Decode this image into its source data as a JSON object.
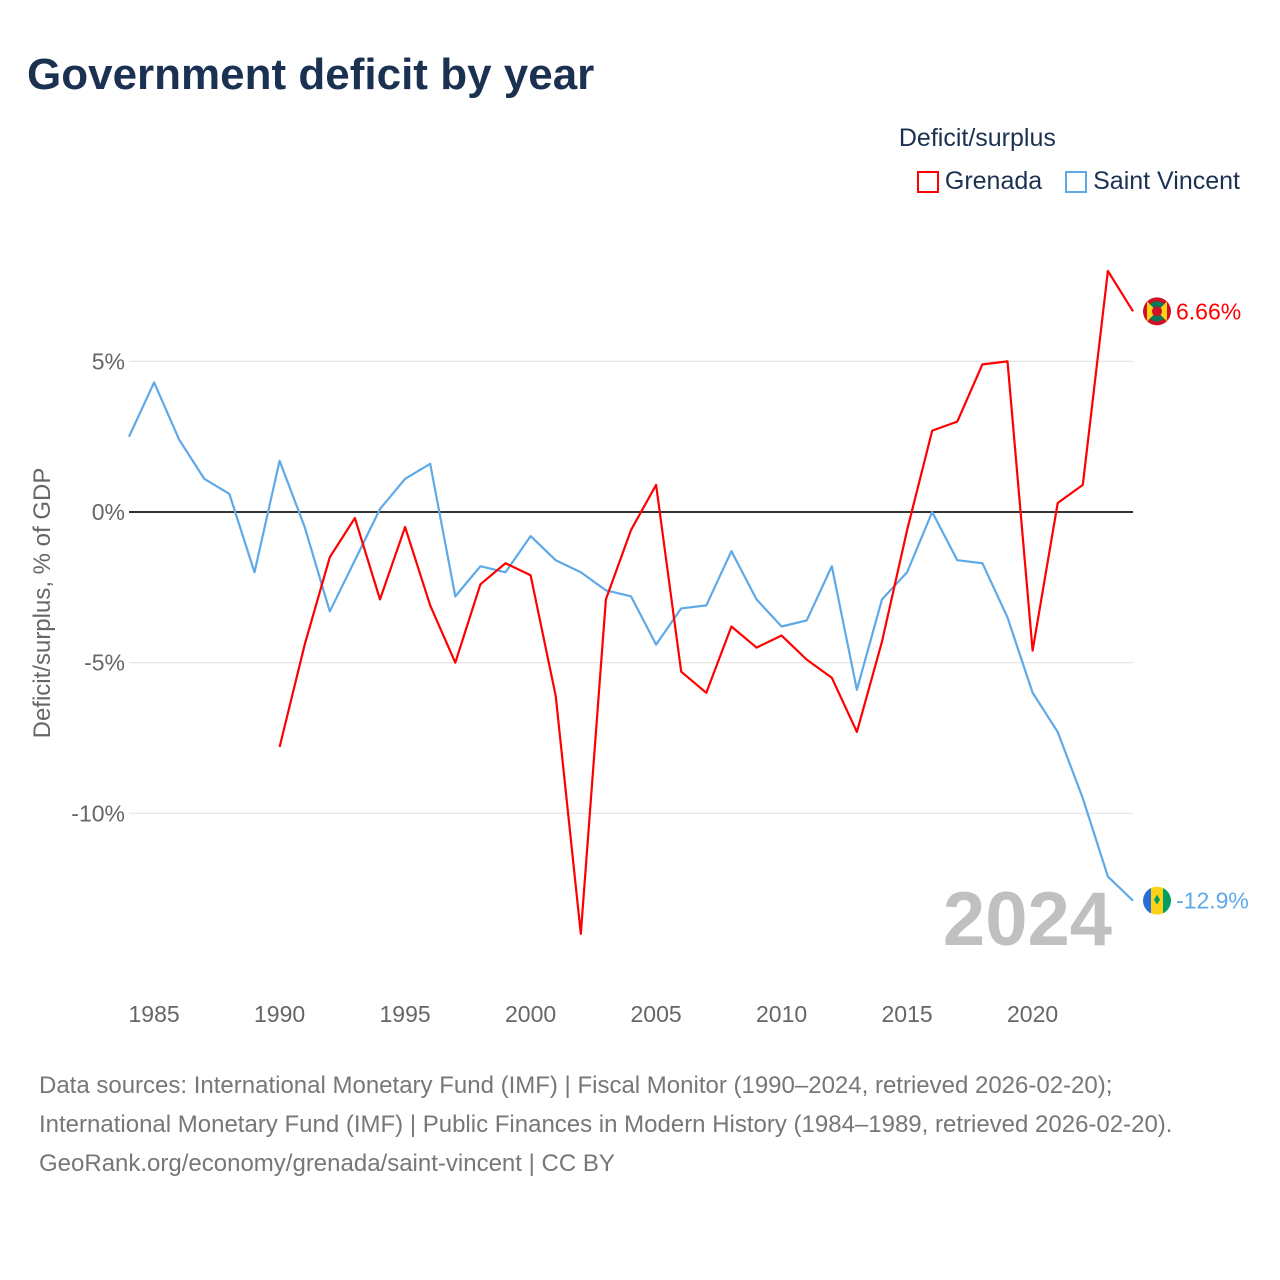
{
  "title": "Government deficit by year",
  "legend": {
    "title": "Deficit/surplus"
  },
  "year_label": "2024",
  "sources": {
    "line1": "Data sources: International Monetary Fund (IMF) | Fiscal Monitor (1990–2024, retrieved 2026-02-20); International Monetary Fund (IMF) | Public Finances in Modern History (1984–1989, retrieved 2026-02-20).",
    "line2": "GeoRank.org/economy/grenada/saint-vincent | CC BY"
  },
  "chart_data": {
    "type": "line",
    "title": "Government deficit by year",
    "xlabel": "",
    "ylabel": "Deficit/surplus, % of GDP",
    "xlim": [
      1984,
      2024
    ],
    "ylim": [
      -15,
      9
    ],
    "x_ticks": [
      1985,
      1990,
      1995,
      2000,
      2005,
      2010,
      2015,
      2020
    ],
    "y_ticks": [
      {
        "v": 5,
        "label": "5%"
      },
      {
        "v": 0,
        "label": "0%"
      },
      {
        "v": -5,
        "label": "-5%"
      },
      {
        "v": -10,
        "label": "-10%"
      }
    ],
    "legend_position": "top-right",
    "series": [
      {
        "name": "Grenada",
        "color": "#ff0000",
        "end_label": "6.66%",
        "x": [
          1990,
          1991,
          1992,
          1993,
          1994,
          1995,
          1996,
          1997,
          1998,
          1999,
          2000,
          2001,
          2002,
          2003,
          2004,
          2005,
          2006,
          2007,
          2008,
          2009,
          2010,
          2011,
          2012,
          2013,
          2014,
          2015,
          2016,
          2017,
          2018,
          2019,
          2020,
          2021,
          2022,
          2023,
          2024
        ],
        "values": [
          -7.8,
          -4.4,
          -1.5,
          -0.2,
          -2.9,
          -0.5,
          -3.1,
          -5.0,
          -2.4,
          -1.7,
          -2.1,
          -6.1,
          -14.0,
          -2.9,
          -0.6,
          0.9,
          -5.3,
          -6.0,
          -3.8,
          -4.5,
          -4.1,
          -4.9,
          -5.5,
          -7.3,
          -4.3,
          -0.6,
          2.7,
          3.0,
          4.9,
          5.0,
          -4.6,
          0.3,
          0.9,
          8.0,
          6.66
        ]
      },
      {
        "name": "Saint Vincent",
        "color": "#5ea9e8",
        "end_label": "-12.9%",
        "x": [
          1984,
          1985,
          1986,
          1987,
          1988,
          1989,
          1990,
          1991,
          1992,
          1993,
          1994,
          1995,
          1996,
          1997,
          1998,
          1999,
          2000,
          2001,
          2002,
          2003,
          2004,
          2005,
          2006,
          2007,
          2008,
          2009,
          2010,
          2011,
          2012,
          2013,
          2014,
          2015,
          2016,
          2017,
          2018,
          2019,
          2020,
          2021,
          2022,
          2023,
          2024
        ],
        "values": [
          2.5,
          4.3,
          2.4,
          1.1,
          0.6,
          -2.0,
          1.7,
          -0.5,
          -3.3,
          -1.6,
          0.1,
          1.1,
          1.6,
          -2.8,
          -1.8,
          -2.0,
          -0.8,
          -1.6,
          -2.0,
          -2.6,
          -2.8,
          -4.4,
          -3.2,
          -3.1,
          -1.3,
          -2.9,
          -3.8,
          -3.6,
          -1.8,
          -5.9,
          -2.9,
          -2.0,
          0.0,
          -1.6,
          -1.7,
          -3.5,
          -6.0,
          -7.3,
          -9.5,
          -12.1,
          -12.9
        ]
      }
    ]
  }
}
